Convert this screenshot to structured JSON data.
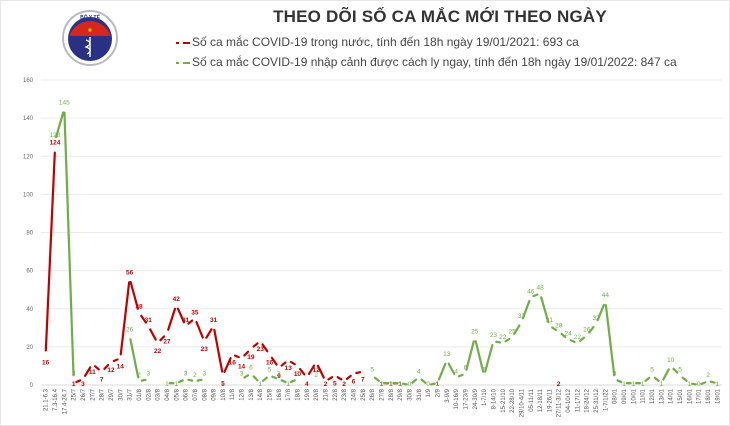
{
  "header": {
    "title": "THEO DÕI SỐ CA MẮC MỚI THEO NGÀY",
    "logo_text_top": "BỘ Y TẾ",
    "logo_text_bottom": "MINISTRY OF HEALTH",
    "legend": [
      {
        "label": "Số ca mắc COVID-19 trong nước, tính đến 18h ngày 19/01/2021: 693 ca",
        "color": "#c00000"
      },
      {
        "label": "Số ca mắc COVID-19 nhập cảnh được cách ly ngay, tính đến 18h ngày 19/01/2022: 847 ca",
        "color": "#70ad47"
      }
    ]
  },
  "chart_data": {
    "type": "line",
    "title": "THEO DÕI SỐ CA MẮC MỚI THEO NGÀY",
    "xlabel": "",
    "ylabel": "",
    "ylim": [
      0,
      160
    ],
    "yticks": [
      0,
      20,
      40,
      60,
      80,
      100,
      120,
      140,
      160
    ],
    "grid": true,
    "legend_position": "top",
    "categories": [
      "21.1-6.3",
      "7.3-16.4",
      "17.4-24.7",
      "25/7",
      "26/7",
      "27/7",
      "28/7",
      "29/7",
      "30/7",
      "31/7",
      "01/8",
      "02/8",
      "03/8",
      "04/8",
      "05/8",
      "06/8",
      "07/8",
      "08/8",
      "09/8",
      "10/8",
      "11/8",
      "12/8",
      "13/8",
      "14/8",
      "15/8",
      "16/8",
      "17/8",
      "18/8",
      "19/8",
      "20/8",
      "21/8",
      "22/8",
      "23/8",
      "24/8",
      "25/8",
      "26/8",
      "27/8",
      "28/8",
      "29/8",
      "30/8",
      "31/8",
      "1/9",
      "2/9",
      "3-9/9",
      "10-16/9",
      "17-23/9",
      "24-30/9",
      "1-7/10",
      "8-14/10",
      "15-21/10",
      "22-28/10",
      "29/10-4/11",
      "05-11/11",
      "12-18/11",
      "19-26/11",
      "27/11-3/12",
      "04-10/12",
      "11-17/12",
      "18-24/12",
      "25-31/12",
      "1-7/1/22",
      "08/01",
      "09/01",
      "10/01",
      "11/01",
      "12/01",
      "13/01",
      "14/01",
      "15/01",
      "16/01",
      "17/01",
      "18/01",
      "19/01"
    ],
    "series": [
      {
        "name": "Số ca mắc COVID-19 trong nước",
        "color": "#c00000",
        "values": [
          16,
          124,
          null,
          1,
          3,
          11,
          7,
          12,
          14,
          56,
          38,
          31,
          22,
          27,
          42,
          31,
          35,
          23,
          31,
          5,
          16,
          14,
          19,
          23,
          16,
          9,
          13,
          10,
          4,
          12,
          2,
          5,
          2,
          6,
          7,
          null,
          1,
          1,
          1,
          null,
          null,
          null,
          1,
          null,
          null,
          null,
          null,
          null,
          null,
          null,
          null,
          null,
          null,
          null,
          null,
          2,
          null,
          null,
          null,
          null,
          null,
          null,
          null,
          null,
          null,
          null,
          null,
          null,
          null,
          null,
          null,
          null,
          null
        ]
      },
      {
        "name": "Số ca mắc COVID-19 nhập cảnh được cách ly ngay",
        "color": "#70ad47",
        "values": [
          null,
          128,
          145,
          3,
          null,
          null,
          null,
          null,
          null,
          26,
          2,
          3,
          null,
          1,
          1,
          3,
          2,
          3,
          null,
          1,
          null,
          3,
          6,
          1,
          5,
          3,
          1,
          3,
          null,
          2,
          null,
          null,
          null,
          null,
          null,
          5,
          1,
          1,
          1,
          0,
          4,
          0,
          1,
          13,
          4,
          6,
          25,
          5,
          23,
          22,
          25,
          33,
          46,
          48,
          31,
          28,
          24,
          22,
          26,
          32,
          44,
          3,
          1,
          1,
          1,
          5,
          1,
          10,
          5,
          1,
          0,
          2,
          1
        ]
      }
    ]
  }
}
